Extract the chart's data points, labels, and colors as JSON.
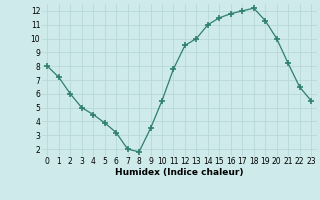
{
  "x": [
    0,
    1,
    2,
    3,
    4,
    5,
    6,
    7,
    8,
    9,
    10,
    11,
    12,
    13,
    14,
    15,
    16,
    17,
    18,
    19,
    20,
    21,
    22,
    23
  ],
  "y": [
    8.0,
    7.2,
    6.0,
    5.0,
    4.5,
    3.9,
    3.2,
    2.0,
    1.8,
    3.5,
    5.5,
    7.8,
    9.5,
    10.0,
    11.0,
    11.5,
    11.8,
    12.0,
    12.2,
    11.3,
    10.0,
    8.2,
    6.5,
    5.5
  ],
  "line_color": "#2e7f6e",
  "marker": "+",
  "marker_size": 4,
  "bg_color": "#ceeaea",
  "grid_color": "#b8d8d8",
  "xlabel": "Humidex (Indice chaleur)",
  "xlim": [
    -0.5,
    23.5
  ],
  "ylim": [
    1.5,
    12.5
  ],
  "yticks": [
    2,
    3,
    4,
    5,
    6,
    7,
    8,
    9,
    10,
    11,
    12
  ],
  "xticks": [
    0,
    1,
    2,
    3,
    4,
    5,
    6,
    7,
    8,
    9,
    10,
    11,
    12,
    13,
    14,
    15,
    16,
    17,
    18,
    19,
    20,
    21,
    22,
    23
  ],
  "tick_fontsize": 5.5,
  "xlabel_fontsize": 6.5
}
